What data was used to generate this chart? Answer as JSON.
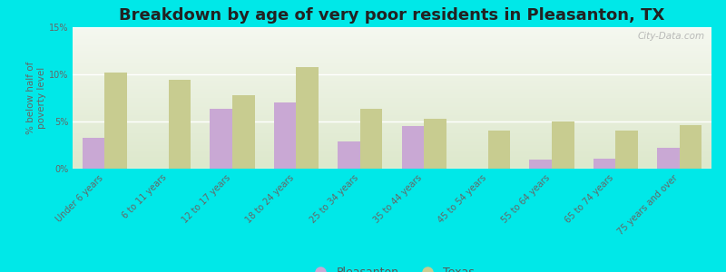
{
  "title": "Breakdown by age of very poor residents in Pleasanton, TX",
  "ylabel": "% below half of\npoverty level",
  "categories": [
    "Under 6 years",
    "6 to 11 years",
    "12 to 17 years",
    "18 to 24 years",
    "25 to 34 years",
    "35 to 44 years",
    "45 to 54 years",
    "55 to 64 years",
    "65 to 74 years",
    "75 years and over"
  ],
  "pleasanton_values": [
    3.3,
    0.0,
    6.3,
    7.0,
    2.9,
    4.5,
    0.0,
    1.0,
    1.1,
    2.2
  ],
  "texas_values": [
    10.2,
    9.4,
    7.8,
    10.8,
    6.3,
    5.3,
    4.0,
    5.0,
    4.0,
    4.6
  ],
  "pleasanton_color": "#c9a8d4",
  "texas_color": "#c8cc90",
  "background_outer": "#00e8e8",
  "background_plot_top": "#f5f8f0",
  "background_plot_bottom": "#dde8cc",
  "ylim": [
    0,
    15
  ],
  "yticks": [
    0,
    5,
    10,
    15
  ],
  "ytick_labels": [
    "0%",
    "5%",
    "10%",
    "15%"
  ],
  "bar_width": 0.35,
  "title_fontsize": 13,
  "tick_fontsize": 7,
  "ylabel_fontsize": 7.5,
  "legend_fontsize": 9,
  "watermark": "City-Data.com"
}
